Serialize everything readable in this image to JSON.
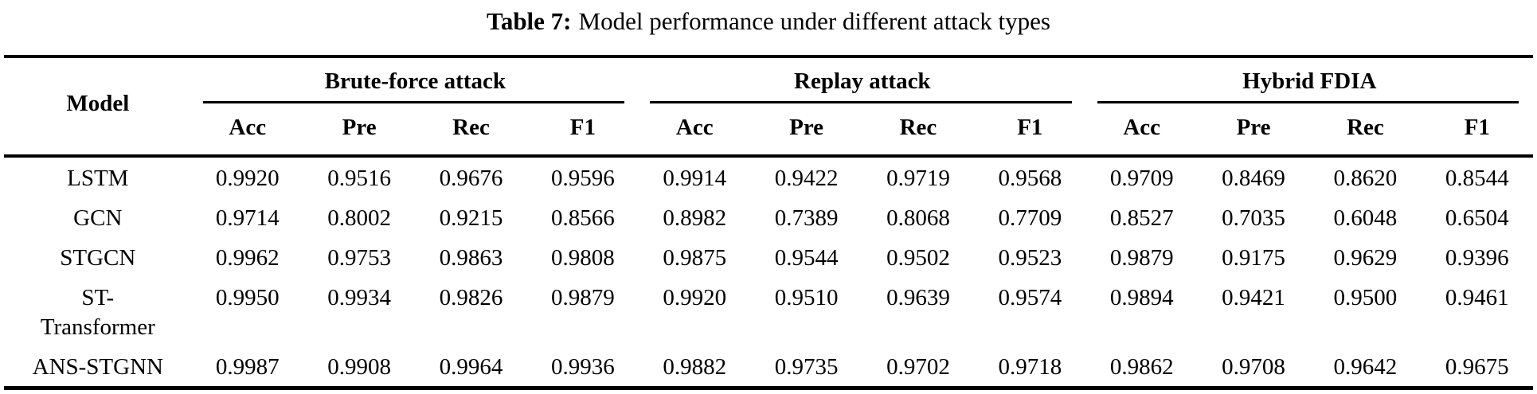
{
  "title": {
    "label": "Table 7:",
    "text": "Model performance under different attack types"
  },
  "table": {
    "model_header": "Model",
    "groups": [
      {
        "label": "Brute-force attack",
        "metrics": [
          "Acc",
          "Pre",
          "Rec",
          "F1"
        ]
      },
      {
        "label": "Replay attack",
        "metrics": [
          "Acc",
          "Pre",
          "Rec",
          "F1"
        ]
      },
      {
        "label": "Hybrid FDIA",
        "metrics": [
          "Acc",
          "Pre",
          "Rec",
          "F1"
        ]
      }
    ],
    "rows": [
      {
        "model": "LSTM",
        "values": [
          "0.9920",
          "0.9516",
          "0.9676",
          "0.9596",
          "0.9914",
          "0.9422",
          "0.9719",
          "0.9568",
          "0.9709",
          "0.8469",
          "0.8620",
          "0.8544"
        ]
      },
      {
        "model": "GCN",
        "values": [
          "0.9714",
          "0.8002",
          "0.9215",
          "0.8566",
          "0.8982",
          "0.7389",
          "0.8068",
          "0.7709",
          "0.8527",
          "0.7035",
          "0.6048",
          "0.6504"
        ]
      },
      {
        "model": "STGCN",
        "values": [
          "0.9962",
          "0.9753",
          "0.9863",
          "0.9808",
          "0.9875",
          "0.9544",
          "0.9502",
          "0.9523",
          "0.9879",
          "0.9175",
          "0.9629",
          "0.9396"
        ]
      },
      {
        "model": "ST-Transformer",
        "values": [
          "0.9950",
          "0.9934",
          "0.9826",
          "0.9879",
          "0.9920",
          "0.9510",
          "0.9639",
          "0.9574",
          "0.9894",
          "0.9421",
          "0.9500",
          "0.9461"
        ]
      },
      {
        "model": "ANS-STGNN",
        "values": [
          "0.9987",
          "0.9908",
          "0.9964",
          "0.9936",
          "0.9882",
          "0.9735",
          "0.9702",
          "0.9718",
          "0.9862",
          "0.9708",
          "0.9642",
          "0.9675"
        ]
      }
    ]
  },
  "colors": {
    "text": "#000000",
    "background": "#ffffff",
    "rule": "#000000"
  }
}
